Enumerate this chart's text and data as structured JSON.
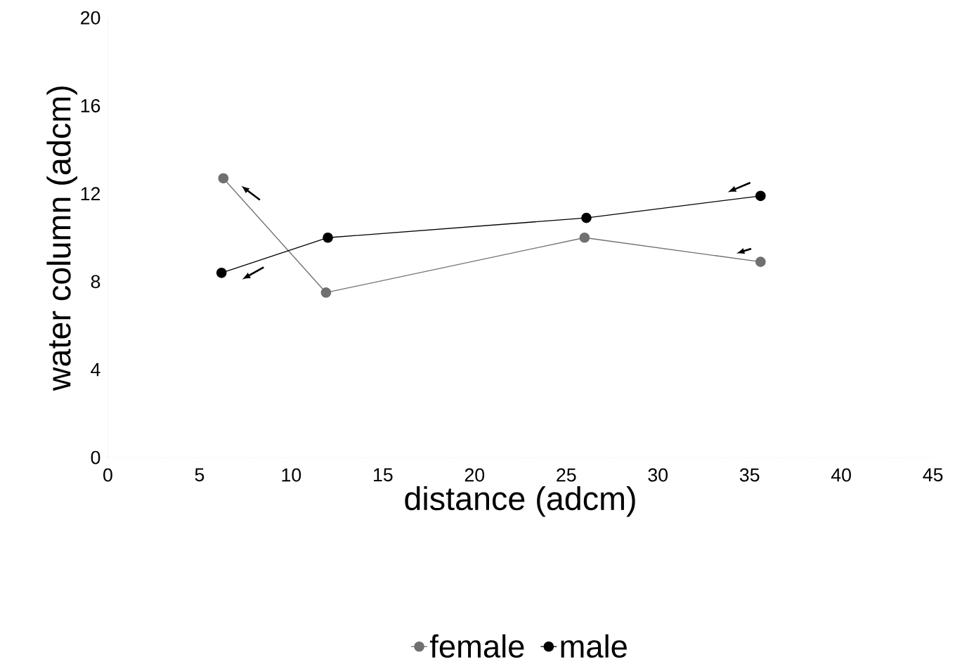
{
  "chart_data": {
    "type": "line",
    "xlabel": "distance (adcm)",
    "ylabel": "water column (adcm)",
    "xlim": [
      0,
      45
    ],
    "xticks": [
      0,
      5,
      10,
      15,
      20,
      25,
      30,
      35,
      40,
      45
    ],
    "ylim": [
      0,
      20
    ],
    "yticks": [
      0,
      4,
      8,
      12,
      16,
      20
    ],
    "series": [
      {
        "name": "female",
        "color": "#707070",
        "x": [
          6.3,
          11.9,
          26,
          35.6
        ],
        "values": [
          12.7,
          7.5,
          10,
          8.9
        ]
      },
      {
        "name": "male",
        "color": "#000000",
        "x": [
          6.2,
          12,
          26.1,
          35.6
        ],
        "values": [
          8.4,
          10,
          10.9,
          11.9
        ]
      }
    ],
    "marker": "circle",
    "legend": "bottom",
    "grid": false
  }
}
